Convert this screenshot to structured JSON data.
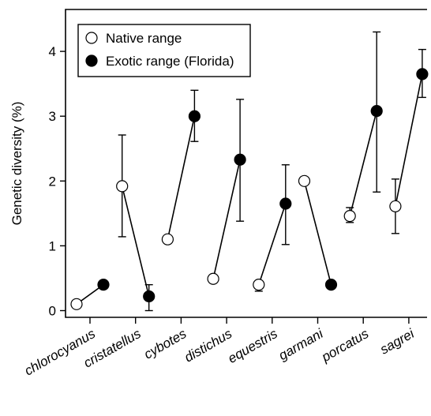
{
  "chart_data": {
    "type": "scatter",
    "title": "",
    "xlabel": "",
    "ylabel": "Genetic diversity (%)",
    "ylim": [
      -0.2,
      4.6
    ],
    "yticks": [
      0,
      1,
      2,
      3,
      4
    ],
    "grid": false,
    "legend_position": "top-left",
    "categories": [
      "chlorocyanus",
      "cristatellus",
      "cybotes",
      "distichus",
      "equestris",
      "garmani",
      "porcatus",
      "sagrei"
    ],
    "series": [
      {
        "name": "Native range",
        "marker": "open-circle",
        "values": [
          0.1,
          1.92,
          1.1,
          0.49,
          0.4,
          2.0,
          1.46,
          1.61
        ],
        "error_low": [
          null,
          1.14,
          null,
          null,
          0.3,
          null,
          1.36,
          1.19
        ],
        "error_high": [
          null,
          2.71,
          null,
          null,
          null,
          null,
          1.59,
          2.03
        ]
      },
      {
        "name": "Exotic range (Florida)",
        "marker": "filled-circle",
        "values": [
          0.4,
          0.22,
          3.0,
          2.33,
          1.65,
          0.4,
          3.08,
          3.65
        ],
        "error_low": [
          null,
          0.0,
          2.61,
          1.38,
          1.02,
          null,
          1.83,
          3.29
        ],
        "error_high": [
          null,
          0.4,
          3.4,
          3.26,
          2.25,
          null,
          4.3,
          4.03
        ]
      }
    ],
    "colors": {
      "axis": "#000000",
      "native_fill": "#ffffff",
      "exotic_fill": "#000000"
    }
  }
}
